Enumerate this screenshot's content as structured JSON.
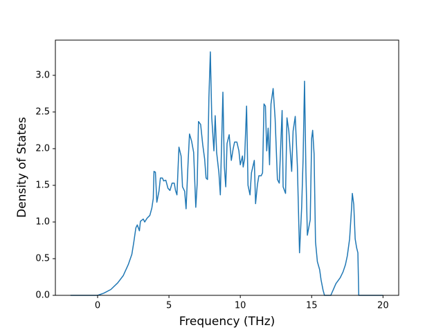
{
  "chart_data": {
    "type": "line",
    "x_label": "Frequency (THz)",
    "y_label": "Density of States",
    "xlim": [
      -2.96,
      21.1
    ],
    "ylim": [
      0,
      3.48
    ],
    "xticks": [
      0,
      5,
      10,
      15,
      20
    ],
    "yticks": [
      {
        "value": 0,
        "label": "0.0"
      },
      0.5,
      {
        "value": 1,
        "label": "1.0"
      },
      1.5,
      {
        "value": 2,
        "label": "2.0"
      },
      2.5,
      {
        "value": 3,
        "label": "3.0"
      }
    ],
    "grid": false,
    "series": [
      {
        "color": "#1f77b4",
        "x": [
          -1.9,
          0,
          0.44,
          0.93,
          1.41,
          1.8,
          2.15,
          2.4,
          2.54,
          2.68,
          2.78,
          2.93,
          3.0,
          3.2,
          3.3,
          3.46,
          3.66,
          3.8,
          3.9,
          3.95,
          4.05,
          4.15,
          4.3,
          4.4,
          4.54,
          4.63,
          4.78,
          4.93,
          5.07,
          5.22,
          5.37,
          5.46,
          5.56,
          5.7,
          5.85,
          5.95,
          6.1,
          6.2,
          6.34,
          6.44,
          6.59,
          6.73,
          6.88,
          6.98,
          7.07,
          7.22,
          7.37,
          7.5,
          7.6,
          7.7,
          7.8,
          7.9,
          8.0,
          8.15,
          8.24,
          8.34,
          8.5,
          8.6,
          8.68,
          8.78,
          8.88,
          8.98,
          9.07,
          9.22,
          9.37,
          9.5,
          9.6,
          9.76,
          9.9,
          10.0,
          10.15,
          10.2,
          10.3,
          10.44,
          10.54,
          10.68,
          10.78,
          10.98,
          11.07,
          11.2,
          11.3,
          11.46,
          11.56,
          11.66,
          11.76,
          11.85,
          11.95,
          12.05,
          12.15,
          12.3,
          12.44,
          12.6,
          12.73,
          12.83,
          12.93,
          13.0,
          13.17,
          13.27,
          13.4,
          13.6,
          13.7,
          13.85,
          14.0,
          14.15,
          14.3,
          14.4,
          14.5,
          14.6,
          14.7,
          14.9,
          15.0,
          15.07,
          15.17,
          15.27,
          15.4,
          15.56,
          15.66,
          15.8,
          15.9,
          16.34,
          16.5,
          16.7,
          17.0,
          17.2,
          17.37,
          17.5,
          17.66,
          17.8,
          17.85,
          17.95,
          18.05,
          18.15,
          18.24,
          18.3,
          20.0
        ],
        "values": [
          0,
          0,
          0.03,
          0.08,
          0.17,
          0.27,
          0.42,
          0.56,
          0.73,
          0.92,
          0.96,
          0.88,
          1.01,
          1.04,
          1.0,
          1.05,
          1.09,
          1.19,
          1.32,
          1.69,
          1.68,
          1.27,
          1.42,
          1.6,
          1.6,
          1.56,
          1.57,
          1.46,
          1.43,
          1.53,
          1.53,
          1.43,
          1.37,
          2.02,
          1.9,
          1.48,
          1.42,
          1.18,
          1.81,
          2.2,
          2.1,
          1.95,
          1.2,
          1.53,
          2.37,
          2.33,
          2.05,
          1.86,
          1.6,
          1.58,
          2.7,
          3.32,
          2.42,
          1.97,
          2.45,
          1.95,
          1.67,
          1.37,
          2.0,
          2.77,
          1.76,
          1.48,
          2.07,
          2.19,
          1.84,
          2.0,
          2.09,
          2.09,
          1.97,
          1.78,
          1.9,
          1.75,
          1.86,
          2.58,
          1.5,
          1.37,
          1.67,
          1.84,
          1.25,
          1.51,
          1.63,
          1.63,
          1.67,
          2.61,
          2.58,
          1.97,
          2.28,
          1.78,
          2.61,
          2.82,
          2.41,
          1.58,
          1.53,
          2.03,
          2.52,
          1.48,
          1.39,
          2.42,
          2.24,
          1.69,
          2.24,
          2.44,
          1.76,
          0.58,
          1.2,
          1.86,
          2.92,
          1.67,
          0.82,
          1.03,
          2.14,
          2.25,
          1.93,
          0.73,
          0.46,
          0.35,
          0.21,
          0.07,
          0,
          0,
          0.07,
          0.16,
          0.24,
          0.32,
          0.42,
          0.54,
          0.77,
          1.2,
          1.39,
          1.24,
          0.77,
          0.65,
          0.58,
          0,
          0
        ]
      }
    ]
  }
}
